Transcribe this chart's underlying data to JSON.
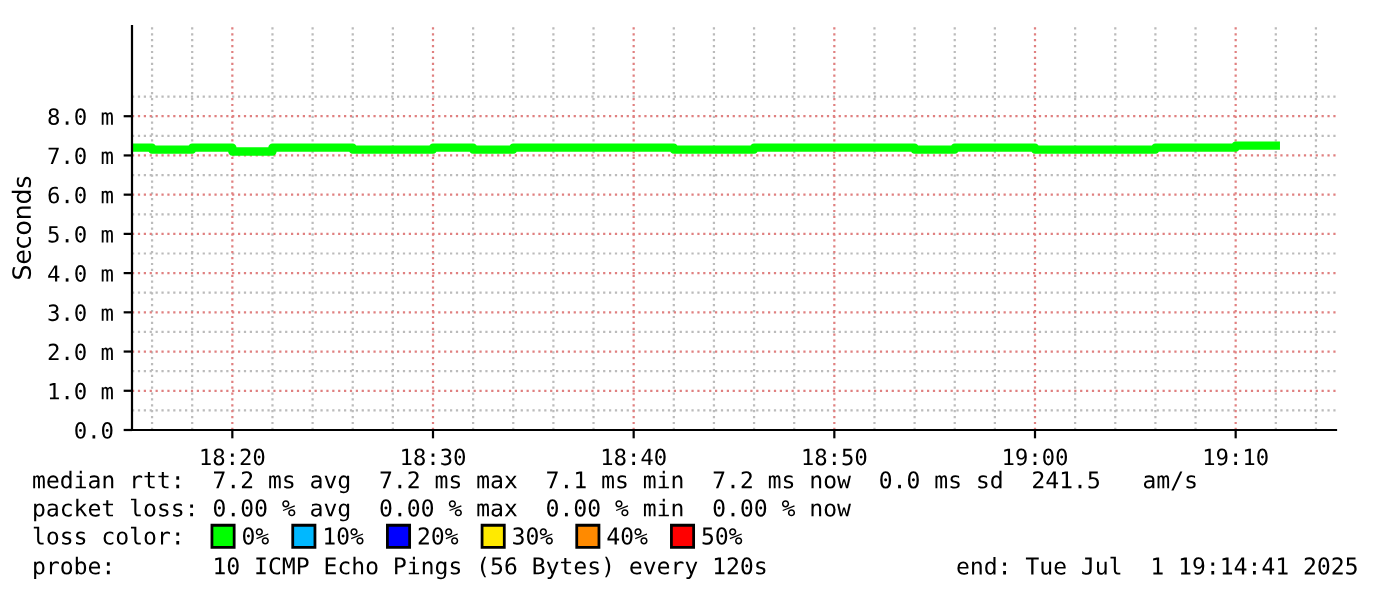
{
  "chart_data": {
    "type": "step",
    "ylabel": "Seconds",
    "legend_title": "loss color:",
    "x": [
      "2025-07-01T18:15",
      "2025-07-01T18:16",
      "2025-07-01T18:18",
      "2025-07-01T18:20",
      "2025-07-01T18:22",
      "2025-07-01T18:24",
      "2025-07-01T18:26",
      "2025-07-01T18:28",
      "2025-07-01T18:30",
      "2025-07-01T18:32",
      "2025-07-01T18:34",
      "2025-07-01T18:36",
      "2025-07-01T18:38",
      "2025-07-01T18:40",
      "2025-07-01T18:42",
      "2025-07-01T18:44",
      "2025-07-01T18:46",
      "2025-07-01T18:48",
      "2025-07-01T18:50",
      "2025-07-01T18:52",
      "2025-07-01T18:54",
      "2025-07-01T18:56",
      "2025-07-01T18:58",
      "2025-07-01T19:00",
      "2025-07-01T19:02",
      "2025-07-01T19:04",
      "2025-07-01T19:06",
      "2025-07-01T19:08",
      "2025-07-01T19:10",
      "2025-07-01T19:12"
    ],
    "series": [
      {
        "name": "0%",
        "color": "#00ff00",
        "values": [
          7.2,
          7.15,
          7.2,
          7.1,
          7.2,
          7.2,
          7.15,
          7.15,
          7.2,
          7.15,
          7.2,
          7.2,
          7.2,
          7.2,
          7.15,
          7.15,
          7.2,
          7.2,
          7.2,
          7.2,
          7.15,
          7.2,
          7.2,
          7.15,
          7.15,
          7.15,
          7.2,
          7.2,
          7.25,
          7.25
        ]
      },
      {
        "name": "10%",
        "color": "#00b8ff",
        "values": [
          null,
          null,
          null,
          null,
          null,
          null,
          null,
          null,
          null,
          null,
          null,
          null,
          null,
          null,
          null,
          null,
          null,
          null,
          null,
          null,
          null,
          null,
          null,
          null,
          null,
          null,
          null,
          null,
          null,
          null
        ]
      },
      {
        "name": "20%",
        "color": "#0000ff",
        "values": [
          null,
          null,
          null,
          null,
          null,
          null,
          null,
          null,
          null,
          null,
          null,
          null,
          null,
          null,
          null,
          null,
          null,
          null,
          null,
          null,
          null,
          null,
          null,
          null,
          null,
          null,
          null,
          null,
          null,
          null
        ]
      },
      {
        "name": "30%",
        "color": "#ffea00",
        "values": [
          null,
          null,
          null,
          null,
          null,
          null,
          null,
          null,
          null,
          null,
          null,
          null,
          null,
          null,
          null,
          null,
          null,
          null,
          null,
          null,
          null,
          null,
          null,
          null,
          null,
          null,
          null,
          null,
          null,
          null
        ]
      },
      {
        "name": "40%",
        "color": "#ff8a00",
        "values": [
          null,
          null,
          null,
          null,
          null,
          null,
          null,
          null,
          null,
          null,
          null,
          null,
          null,
          null,
          null,
          null,
          null,
          null,
          null,
          null,
          null,
          null,
          null,
          null,
          null,
          null,
          null,
          null,
          null,
          null
        ]
      },
      {
        "name": "50%",
        "color": "#ff0000",
        "values": [
          null,
          null,
          null,
          null,
          null,
          null,
          null,
          null,
          null,
          null,
          null,
          null,
          null,
          null,
          null,
          null,
          null,
          null,
          null,
          null,
          null,
          null,
          null,
          null,
          null,
          null,
          null,
          null,
          null,
          null
        ]
      }
    ],
    "xlim": [
      "2025-07-01T18:15",
      "2025-07-01T19:15"
    ],
    "xticks": [
      {
        "value": "2025-07-01T18:20",
        "label": "18:20"
      },
      {
        "value": "2025-07-01T18:30",
        "label": "18:30"
      },
      {
        "value": "2025-07-01T18:40",
        "label": "18:40"
      },
      {
        "value": "2025-07-01T18:50",
        "label": "18:50"
      },
      {
        "value": "2025-07-01T19:00",
        "label": "19:00"
      },
      {
        "value": "2025-07-01T19:10",
        "label": "19:10"
      }
    ],
    "ylim": [
      0,
      10.3
    ],
    "yticks": [
      {
        "value": 0,
        "label": "0.0"
      },
      {
        "value": 1,
        "label": "1.0 m"
      },
      {
        "value": 2,
        "label": "2.0 m"
      },
      {
        "value": 3,
        "label": "3.0 m"
      },
      {
        "value": 4,
        "label": "4.0 m"
      },
      {
        "value": 5,
        "label": "5.0 m"
      },
      {
        "value": 6,
        "label": "6.0 m"
      },
      {
        "value": 7,
        "label": "7.0 m"
      },
      {
        "value": 8,
        "label": "8.0 m"
      }
    ],
    "grid": true,
    "legend": "bottom",
    "annotations": [
      "median rtt:  7.2 ms avg  7.2 ms max  7.1 ms min  7.2 ms now  0.0 ms sd  241.5   am/s",
      "packet loss: 0.00 % avg  0.00 % max  0.00 % min  0.00 % now",
      "probe:       10 ICMP Echo Pings (56 Bytes) every 120s",
      "end: Tue Jul  1 19:14:41 2025"
    ]
  }
}
